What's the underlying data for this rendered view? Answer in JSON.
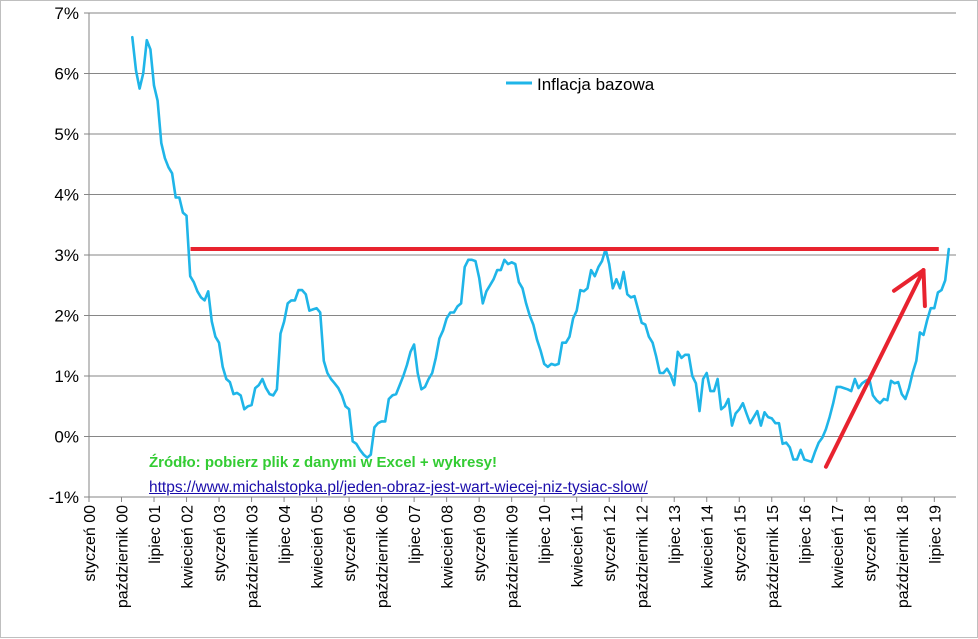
{
  "chart_data": {
    "type": "line",
    "title": "",
    "xlabel": "",
    "ylabel": "",
    "ylim": [
      -1,
      7
    ],
    "y_unit": "%",
    "y_ticks": [
      -1,
      0,
      1,
      2,
      3,
      4,
      5,
      6,
      7
    ],
    "y_tick_labels": [
      "-1%",
      "0%",
      "1%",
      "2%",
      "3%",
      "4%",
      "5%",
      "6%",
      "7%"
    ],
    "x_start": "2000-01",
    "x_end": "2020-01",
    "x_tick_labels": [
      "styczeń 00",
      "październik 00",
      "lipiec 01",
      "kwiecień 02",
      "styczeń 03",
      "październik 03",
      "lipiec 04",
      "kwiecień 05",
      "styczeń 06",
      "październik 06",
      "lipiec 07",
      "kwiecień 08",
      "styczeń 09",
      "październik 09",
      "lipiec 10",
      "kwiecień 11",
      "styczeń 12",
      "październik 12",
      "lipiec 13",
      "kwiecień 14",
      "styczeń 15",
      "październik 15",
      "lipiec 16",
      "kwiecień 17",
      "styczeń 18",
      "październik 18",
      "lipiec 19"
    ],
    "grid": true,
    "legend_position": "top-center",
    "series": [
      {
        "name": "Inflacja bazowa",
        "color": "#1fb5e8",
        "points": [
          [
            "2001-01",
            6.6
          ],
          [
            "2001-02",
            6.05
          ],
          [
            "2001-03",
            5.75
          ],
          [
            "2001-04",
            6.0
          ],
          [
            "2001-05",
            6.55
          ],
          [
            "2001-06",
            6.4
          ],
          [
            "2001-07",
            5.8
          ],
          [
            "2001-08",
            5.55
          ],
          [
            "2001-09",
            4.85
          ],
          [
            "2001-10",
            4.6
          ],
          [
            "2001-11",
            4.45
          ],
          [
            "2001-12",
            4.35
          ],
          [
            "2002-01",
            3.95
          ],
          [
            "2002-02",
            3.95
          ],
          [
            "2002-03",
            3.7
          ],
          [
            "2002-04",
            3.65
          ],
          [
            "2002-05",
            2.65
          ],
          [
            "2002-06",
            2.55
          ],
          [
            "2002-07",
            2.4
          ],
          [
            "2002-08",
            2.3
          ],
          [
            "2002-09",
            2.25
          ],
          [
            "2002-10",
            2.4
          ],
          [
            "2002-11",
            1.9
          ],
          [
            "2002-12",
            1.65
          ],
          [
            "2003-01",
            1.55
          ],
          [
            "2003-02",
            1.15
          ],
          [
            "2003-03",
            0.95
          ],
          [
            "2003-04",
            0.9
          ],
          [
            "2003-05",
            0.7
          ],
          [
            "2003-06",
            0.72
          ],
          [
            "2003-07",
            0.68
          ],
          [
            "2003-08",
            0.45
          ],
          [
            "2003-09",
            0.5
          ],
          [
            "2003-10",
            0.52
          ],
          [
            "2003-11",
            0.8
          ],
          [
            "2003-12",
            0.85
          ],
          [
            "2004-01",
            0.95
          ],
          [
            "2004-02",
            0.8
          ],
          [
            "2004-03",
            0.7
          ],
          [
            "2004-04",
            0.68
          ],
          [
            "2004-05",
            0.78
          ],
          [
            "2004-06",
            1.7
          ],
          [
            "2004-07",
            1.9
          ],
          [
            "2004-08",
            2.2
          ],
          [
            "2004-09",
            2.25
          ],
          [
            "2004-10",
            2.25
          ],
          [
            "2004-11",
            2.42
          ],
          [
            "2004-12",
            2.42
          ],
          [
            "2005-01",
            2.35
          ],
          [
            "2005-02",
            2.08
          ],
          [
            "2005-03",
            2.1
          ],
          [
            "2005-04",
            2.12
          ],
          [
            "2005-05",
            2.05
          ],
          [
            "2005-06",
            1.25
          ],
          [
            "2005-07",
            1.05
          ],
          [
            "2005-08",
            0.95
          ],
          [
            "2005-09",
            0.88
          ],
          [
            "2005-10",
            0.8
          ],
          [
            "2005-11",
            0.68
          ],
          [
            "2005-12",
            0.5
          ],
          [
            "2006-01",
            0.45
          ],
          [
            "2006-02",
            -0.08
          ],
          [
            "2006-03",
            -0.12
          ],
          [
            "2006-04",
            -0.22
          ],
          [
            "2006-05",
            -0.3
          ],
          [
            "2006-06",
            -0.35
          ],
          [
            "2006-07",
            -0.3
          ],
          [
            "2006-08",
            0.15
          ],
          [
            "2006-09",
            0.22
          ],
          [
            "2006-10",
            0.25
          ],
          [
            "2006-11",
            0.25
          ],
          [
            "2006-12",
            0.62
          ],
          [
            "2007-01",
            0.68
          ],
          [
            "2007-02",
            0.7
          ],
          [
            "2007-03",
            0.85
          ],
          [
            "2007-04",
            1.0
          ],
          [
            "2007-05",
            1.18
          ],
          [
            "2007-06",
            1.4
          ],
          [
            "2007-07",
            1.52
          ],
          [
            "2007-08",
            1.05
          ],
          [
            "2007-09",
            0.78
          ],
          [
            "2007-10",
            0.82
          ],
          [
            "2007-11",
            0.95
          ],
          [
            "2007-12",
            1.05
          ],
          [
            "2008-01",
            1.3
          ],
          [
            "2008-02",
            1.62
          ],
          [
            "2008-03",
            1.75
          ],
          [
            "2008-04",
            1.95
          ],
          [
            "2008-05",
            2.05
          ],
          [
            "2008-06",
            2.05
          ],
          [
            "2008-07",
            2.15
          ],
          [
            "2008-08",
            2.2
          ],
          [
            "2008-09",
            2.8
          ],
          [
            "2008-10",
            2.92
          ],
          [
            "2008-11",
            2.92
          ],
          [
            "2008-12",
            2.9
          ],
          [
            "2009-01",
            2.62
          ],
          [
            "2009-02",
            2.2
          ],
          [
            "2009-03",
            2.4
          ],
          [
            "2009-04",
            2.5
          ],
          [
            "2009-05",
            2.6
          ],
          [
            "2009-06",
            2.75
          ],
          [
            "2009-07",
            2.75
          ],
          [
            "2009-08",
            2.92
          ],
          [
            "2009-09",
            2.85
          ],
          [
            "2009-10",
            2.88
          ],
          [
            "2009-11",
            2.85
          ],
          [
            "2009-12",
            2.55
          ],
          [
            "2010-01",
            2.45
          ],
          [
            "2010-02",
            2.2
          ],
          [
            "2010-03",
            2.0
          ],
          [
            "2010-04",
            1.85
          ],
          [
            "2010-05",
            1.6
          ],
          [
            "2010-06",
            1.42
          ],
          [
            "2010-07",
            1.2
          ],
          [
            "2010-08",
            1.15
          ],
          [
            "2010-09",
            1.2
          ],
          [
            "2010-10",
            1.18
          ],
          [
            "2010-11",
            1.2
          ],
          [
            "2010-12",
            1.55
          ],
          [
            "2011-01",
            1.55
          ],
          [
            "2011-02",
            1.65
          ],
          [
            "2011-03",
            1.95
          ],
          [
            "2011-04",
            2.08
          ],
          [
            "2011-05",
            2.42
          ],
          [
            "2011-06",
            2.4
          ],
          [
            "2011-07",
            2.45
          ],
          [
            "2011-08",
            2.75
          ],
          [
            "2011-09",
            2.65
          ],
          [
            "2011-10",
            2.8
          ],
          [
            "2011-11",
            2.9
          ],
          [
            "2011-12",
            3.1
          ],
          [
            "2012-01",
            2.85
          ],
          [
            "2012-02",
            2.45
          ],
          [
            "2012-03",
            2.6
          ],
          [
            "2012-04",
            2.45
          ],
          [
            "2012-05",
            2.72
          ],
          [
            "2012-06",
            2.35
          ],
          [
            "2012-07",
            2.3
          ],
          [
            "2012-08",
            2.32
          ],
          [
            "2012-09",
            2.1
          ],
          [
            "2012-10",
            1.88
          ],
          [
            "2012-11",
            1.85
          ],
          [
            "2012-12",
            1.65
          ],
          [
            "2013-01",
            1.55
          ],
          [
            "2013-02",
            1.32
          ],
          [
            "2013-03",
            1.05
          ],
          [
            "2013-04",
            1.05
          ],
          [
            "2013-05",
            1.12
          ],
          [
            "2013-06",
            1.02
          ],
          [
            "2013-07",
            0.85
          ],
          [
            "2013-08",
            1.4
          ],
          [
            "2013-09",
            1.3
          ],
          [
            "2013-10",
            1.35
          ],
          [
            "2013-11",
            1.35
          ],
          [
            "2013-12",
            1.0
          ],
          [
            "2014-01",
            0.88
          ],
          [
            "2014-02",
            0.42
          ],
          [
            "2014-03",
            0.95
          ],
          [
            "2014-04",
            1.05
          ],
          [
            "2014-05",
            0.75
          ],
          [
            "2014-06",
            0.75
          ],
          [
            "2014-07",
            0.95
          ],
          [
            "2014-08",
            0.45
          ],
          [
            "2014-09",
            0.5
          ],
          [
            "2014-10",
            0.62
          ],
          [
            "2014-11",
            0.18
          ],
          [
            "2014-12",
            0.38
          ],
          [
            "2015-01",
            0.45
          ],
          [
            "2015-02",
            0.55
          ],
          [
            "2015-03",
            0.38
          ],
          [
            "2015-04",
            0.22
          ],
          [
            "2015-05",
            0.32
          ],
          [
            "2015-06",
            0.42
          ],
          [
            "2015-07",
            0.18
          ],
          [
            "2015-08",
            0.4
          ],
          [
            "2015-09",
            0.32
          ],
          [
            "2015-10",
            0.3
          ],
          [
            "2015-11",
            0.22
          ],
          [
            "2015-12",
            0.22
          ],
          [
            "2016-01",
            -0.12
          ],
          [
            "2016-02",
            -0.1
          ],
          [
            "2016-03",
            -0.18
          ],
          [
            "2016-04",
            -0.38
          ],
          [
            "2016-05",
            -0.38
          ],
          [
            "2016-06",
            -0.22
          ],
          [
            "2016-07",
            -0.38
          ],
          [
            "2016-08",
            -0.4
          ],
          [
            "2016-09",
            -0.42
          ],
          [
            "2016-10",
            -0.25
          ],
          [
            "2016-11",
            -0.1
          ],
          [
            "2016-12",
            -0.02
          ],
          [
            "2017-01",
            0.12
          ],
          [
            "2017-02",
            0.32
          ],
          [
            "2017-03",
            0.55
          ],
          [
            "2017-04",
            0.82
          ],
          [
            "2017-05",
            0.82
          ],
          [
            "2017-06",
            0.8
          ],
          [
            "2017-07",
            0.78
          ],
          [
            "2017-08",
            0.75
          ],
          [
            "2017-09",
            0.95
          ],
          [
            "2017-10",
            0.8
          ],
          [
            "2017-11",
            0.88
          ],
          [
            "2017-12",
            0.92
          ],
          [
            "2018-01",
            0.95
          ],
          [
            "2018-02",
            0.68
          ],
          [
            "2018-03",
            0.6
          ],
          [
            "2018-04",
            0.55
          ],
          [
            "2018-05",
            0.62
          ],
          [
            "2018-06",
            0.6
          ],
          [
            "2018-07",
            0.92
          ],
          [
            "2018-08",
            0.88
          ],
          [
            "2018-09",
            0.9
          ],
          [
            "2018-10",
            0.7
          ],
          [
            "2018-11",
            0.62
          ],
          [
            "2018-12",
            0.8
          ],
          [
            "2019-01",
            1.05
          ],
          [
            "2019-02",
            1.25
          ],
          [
            "2019-03",
            1.72
          ],
          [
            "2019-04",
            1.68
          ],
          [
            "2019-05",
            1.92
          ],
          [
            "2019-06",
            2.12
          ],
          [
            "2019-07",
            2.12
          ],
          [
            "2019-08",
            2.38
          ],
          [
            "2019-09",
            2.42
          ],
          [
            "2019-10",
            2.58
          ],
          [
            "2019-11",
            3.1
          ]
        ]
      }
    ],
    "annotations": [
      {
        "type": "horizontal-line",
        "color": "#e8232f",
        "y": 3.1,
        "x_from": "2002-04",
        "x_to": "2019-11"
      },
      {
        "type": "arrow",
        "color": "#e8232f",
        "from": [
          "2017-01",
          -0.5
        ],
        "to": [
          "2019-04",
          2.75
        ]
      }
    ]
  },
  "source_note": "Źródło: pobierz plik z danymi w Excel + wykresy!",
  "source_link": "https://www.michalstopka.pl/jeden-obraz-jest-wart-wiecej-niz-tysiac-slow/"
}
